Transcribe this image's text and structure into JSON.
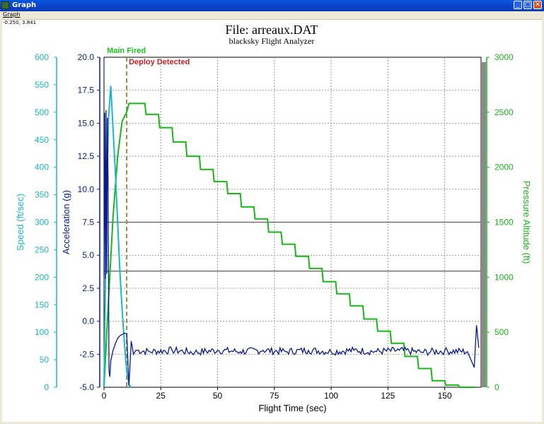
{
  "window": {
    "title": "Graph",
    "menu": [
      "Graph"
    ],
    "coordinate_readout": "-0.250, 3.841",
    "controls": {
      "minimize": "_",
      "maximize": "□",
      "close": "✕"
    }
  },
  "chart_data": {
    "type": "line",
    "title": "File: arreaux.DAT",
    "subtitle": "blacksky Flight Analyzer",
    "xlabel": "Flight Time (sec)",
    "xlim": [
      0,
      166
    ],
    "xticks": [
      0,
      25,
      50,
      75,
      100,
      125,
      150
    ],
    "grid": true,
    "axes": {
      "speed": {
        "label": "Speed (ft/sec)",
        "range": [
          0,
          600
        ],
        "ticks": [
          0,
          50,
          100,
          150,
          200,
          250,
          300,
          350,
          400,
          450,
          500,
          550,
          600
        ],
        "color": "#1ab8c8"
      },
      "acceleration": {
        "label": "Acceleration (g)",
        "range": [
          -5.0,
          20.0
        ],
        "ticks": [
          "-5.0",
          "-2.5",
          "0.0",
          "2.5",
          "5.0",
          "7.5",
          "10.0",
          "12.5",
          "15.0",
          "17.5",
          "20.0"
        ],
        "color": "#0a1a8c"
      },
      "altitude": {
        "label": "Pressure Altitude (ft)",
        "range": [
          0,
          3000
        ],
        "ticks": [
          0,
          500,
          1000,
          1500,
          2000,
          2500,
          3000
        ],
        "color": "#18b818"
      }
    },
    "annotations": [
      {
        "text": "Main Fired",
        "x": 10,
        "color": "#18c818"
      },
      {
        "text": "Deploy Detected",
        "x": 10,
        "color": "#cc2020"
      }
    ],
    "reference_lines_accel": [
      7.5,
      3.8
    ],
    "series": [
      {
        "axis": "altitude",
        "color": "#18b818",
        "x": [
          0,
          2,
          4,
          6,
          8,
          10,
          11,
          18,
          18.5,
          24,
          24.5,
          30,
          30.5,
          36,
          36.5,
          42,
          42.5,
          48,
          48.5,
          54,
          54.5,
          60,
          60.5,
          66,
          66.5,
          72,
          72.5,
          78,
          78.5,
          84,
          84.5,
          90,
          90.5,
          96,
          96.5,
          102,
          102.5,
          108,
          108.5,
          114,
          114.5,
          120,
          120.5,
          126,
          126.5,
          132,
          132.5,
          138,
          138.5,
          144,
          144.5,
          150,
          150.5,
          156,
          156.5,
          162,
          163.5
        ],
        "values": [
          0,
          800,
          1550,
          2100,
          2420,
          2500,
          2580,
          2580,
          2480,
          2480,
          2360,
          2360,
          2230,
          2230,
          2100,
          2100,
          1980,
          1980,
          1870,
          1870,
          1760,
          1760,
          1640,
          1640,
          1530,
          1530,
          1410,
          1410,
          1300,
          1300,
          1190,
          1190,
          1080,
          1080,
          960,
          960,
          850,
          850,
          740,
          740,
          620,
          620,
          510,
          510,
          400,
          400,
          280,
          280,
          170,
          170,
          60,
          60,
          20,
          20,
          0,
          0,
          0
        ]
      },
      {
        "axis": "speed",
        "color": "#1ab8c8",
        "x": [
          0,
          1,
          2,
          3,
          4,
          5,
          6,
          7,
          8,
          9,
          10,
          11,
          12
        ],
        "values": [
          0,
          300,
          490,
          548,
          470,
          390,
          300,
          210,
          140,
          80,
          30,
          5,
          0
        ]
      },
      {
        "axis": "acceleration",
        "color": "#0a1a8c",
        "x": [
          0,
          0.3,
          0.6,
          0.9,
          1.2,
          1.5,
          1.8,
          2.0,
          2.2,
          2.6,
          3,
          4,
          5,
          6,
          7,
          8,
          9,
          10,
          11,
          12,
          13,
          14,
          20,
          30,
          40,
          50,
          60,
          70,
          80,
          90,
          100,
          110,
          120,
          130,
          140,
          150,
          160,
          163,
          164,
          165
        ],
        "values": [
          3.5,
          15.8,
          3.2,
          16.0,
          3.6,
          15.4,
          10.5,
          3.6,
          -3.8,
          -4.2,
          -3.0,
          -2.2,
          -1.7,
          -1.3,
          -1.1,
          -1.0,
          -0.9,
          -0.95,
          -4.9,
          -1.5,
          -2.5,
          -2.2,
          -2.3,
          -2.2,
          -2.35,
          -2.2,
          -2.3,
          -2.2,
          -2.3,
          -2.2,
          -2.3,
          -2.2,
          -2.3,
          -2.2,
          -2.35,
          -2.25,
          -2.3,
          -3.5,
          -0.3,
          -2.0
        ]
      }
    ]
  }
}
